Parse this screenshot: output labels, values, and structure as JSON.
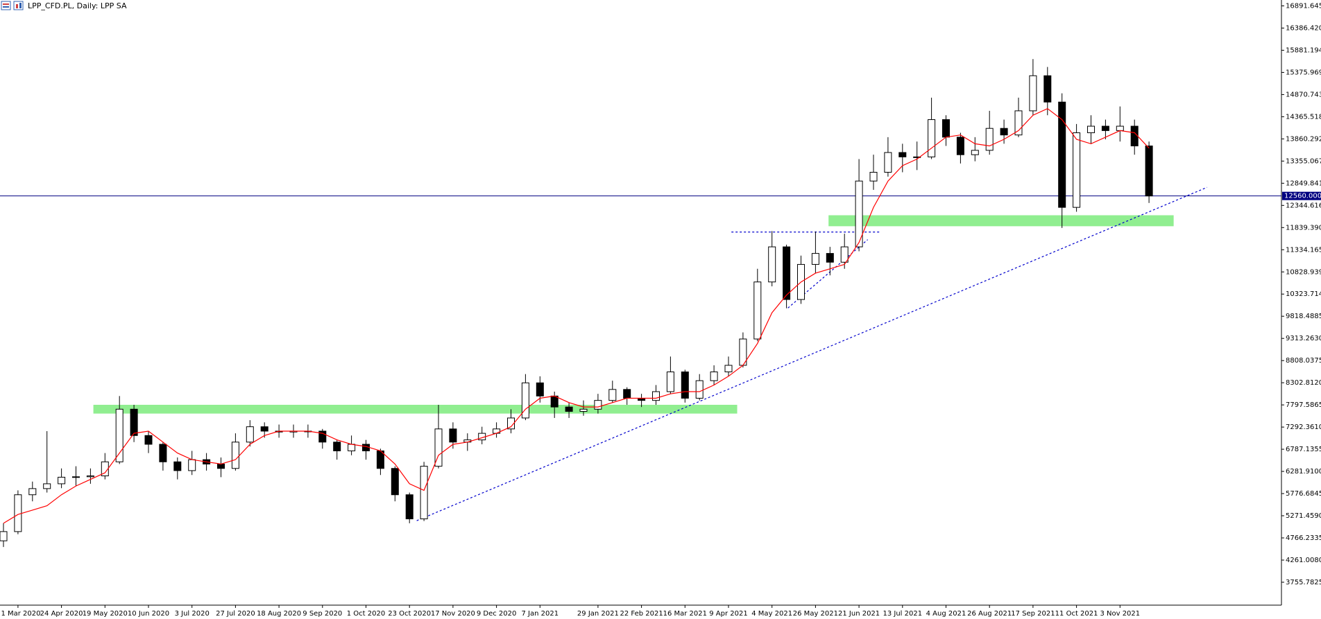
{
  "chart_data": {
    "type": "candlestick",
    "title": "LPP_CFD.PL, Daily: LPP SA",
    "categories": [
      null,
      "1 Mar 2020",
      null,
      null,
      "24 Apr 2020",
      null,
      null,
      "19 May 2020",
      null,
      null,
      "10 Jun 2020",
      null,
      null,
      "3 Jul 2020",
      null,
      null,
      "27 Jul 2020",
      null,
      null,
      "18 Aug 2020",
      null,
      null,
      "9 Sep 2020",
      null,
      null,
      "1 Oct 2020",
      null,
      null,
      "23 Oct 2020",
      null,
      null,
      "17 Nov 2020",
      null,
      null,
      "9 Dec 2020",
      null,
      null,
      "7 Jan 2021",
      null,
      null,
      null,
      "29 Jan 2021",
      null,
      null,
      "22 Feb 2021",
      null,
      null,
      "16 Mar 2021",
      null,
      null,
      "9 Apr 2021",
      null,
      null,
      "4 May 2021",
      null,
      null,
      "26 May 2021",
      null,
      null,
      "21 Jun 2021",
      null,
      null,
      "13 Jul 2021",
      null,
      null,
      "4 Aug 2021",
      null,
      null,
      "26 Aug 2021",
      null,
      null,
      "17 Sep 2021",
      null,
      null,
      "11 Oct 2021",
      null,
      null,
      "3 Nov 2021",
      null,
      null
    ],
    "ohlc": {
      "up_color": "#ffffff",
      "down_color": "#000000",
      "wick_color": "#000000",
      "open": [
        4700,
        4910,
        5750,
        5890,
        6000,
        6150,
        6160,
        6180,
        6500,
        7700,
        7100,
        6900,
        6500,
        6300,
        6550,
        6450,
        6350,
        6950,
        7300,
        7200,
        7180,
        7200,
        7200,
        6950,
        6750,
        6900,
        6750,
        6350,
        5750,
        5200,
        6400,
        7250,
        6950,
        7000,
        7150,
        7250,
        7500,
        8300,
        8000,
        7750,
        7650,
        7700,
        7900,
        8150,
        7950,
        7900,
        8100,
        8550,
        7950,
        8350,
        8550,
        8700,
        9300,
        10600,
        11400,
        10200,
        11000,
        11250,
        11050,
        11400,
        12900,
        13100,
        13550,
        13450,
        13450,
        14300,
        13900,
        13500,
        13600,
        14100,
        13950,
        14500,
        15300,
        14700,
        12300,
        14000,
        14150,
        14050,
        14150,
        13700
      ],
      "high": [
        5100,
        5850,
        6050,
        7200,
        6350,
        6400,
        6350,
        6700,
        8000,
        7800,
        7200,
        6950,
        6600,
        6750,
        6700,
        6600,
        7150,
        7450,
        7400,
        7350,
        7350,
        7350,
        7250,
        7000,
        7100,
        7000,
        6800,
        6400,
        5800,
        6500,
        7800,
        7400,
        7150,
        7300,
        7400,
        7700,
        8500,
        8450,
        8100,
        7850,
        7900,
        8050,
        8350,
        8200,
        8050,
        8250,
        8900,
        8600,
        8500,
        8700,
        8900,
        9450,
        10900,
        11760,
        11450,
        11200,
        11750,
        11400,
        11700,
        13400,
        13500,
        13900,
        13750,
        13800,
        14800,
        14400,
        14000,
        13900,
        14500,
        14300,
        14800,
        15680,
        15500,
        14900,
        14200,
        14400,
        14300,
        14600,
        14300,
        13800
      ],
      "low": [
        4560,
        4850,
        5600,
        5800,
        5900,
        5950,
        6000,
        6100,
        6450,
        6950,
        6700,
        6300,
        6100,
        6200,
        6300,
        6150,
        6300,
        6850,
        7050,
        7050,
        7050,
        7050,
        6800,
        6550,
        6650,
        6550,
        6200,
        5600,
        5100,
        5150,
        6350,
        6800,
        6750,
        6900,
        7050,
        7150,
        7450,
        7850,
        7500,
        7500,
        7550,
        7600,
        7850,
        7800,
        7750,
        7800,
        8050,
        7850,
        7900,
        8250,
        8450,
        8650,
        9250,
        10500,
        10000,
        10100,
        10800,
        10750,
        10900,
        11300,
        12700,
        13000,
        13100,
        13150,
        13400,
        13700,
        13300,
        13350,
        13500,
        13750,
        13900,
        14400,
        14400,
        11830,
        12200,
        13750,
        13850,
        13800,
        13500,
        12400
      ],
      "close": [
        4910,
        5750,
        5890,
        6000,
        6150,
        6160,
        6180,
        6500,
        7700,
        7100,
        6900,
        6500,
        6300,
        6550,
        6450,
        6350,
        6950,
        7300,
        7200,
        7180,
        7200,
        7200,
        6950,
        6750,
        6900,
        6750,
        6350,
        5750,
        5200,
        6400,
        7250,
        6950,
        7000,
        7150,
        7250,
        7500,
        8300,
        8000,
        7750,
        7650,
        7700,
        7900,
        8150,
        7950,
        7900,
        8100,
        8550,
        7950,
        8350,
        8550,
        8700,
        9300,
        10600,
        11400,
        10200,
        11000,
        11250,
        11050,
        11400,
        12900,
        13100,
        13550,
        13450,
        13450,
        14300,
        13900,
        13500,
        13600,
        14100,
        13950,
        14500,
        15300,
        14700,
        12300,
        14000,
        14150,
        14050,
        14150,
        13700,
        12560
      ]
    },
    "ma": {
      "color": "#ff0000",
      "values": [
        5100,
        5300,
        5400,
        5500,
        5750,
        5950,
        6100,
        6250,
        6700,
        7150,
        7200,
        6950,
        6700,
        6550,
        6500,
        6450,
        6550,
        6900,
        7100,
        7200,
        7200,
        7200,
        7150,
        7000,
        6900,
        6850,
        6750,
        6450,
        6000,
        5850,
        6650,
        6900,
        6950,
        7050,
        7150,
        7300,
        7700,
        7950,
        8000,
        7850,
        7750,
        7750,
        7850,
        7950,
        7950,
        7950,
        8050,
        8100,
        8100,
        8250,
        8450,
        8700,
        9200,
        9900,
        10300,
        10600,
        10800,
        10900,
        11000,
        11500,
        12300,
        12900,
        13250,
        13400,
        13650,
        13900,
        13950,
        13750,
        13700,
        13850,
        14050,
        14400,
        14550,
        14300,
        13850,
        13750,
        13900,
        14050,
        14000,
        13650
      ]
    },
    "price_line": {
      "value": 12560,
      "label": "12560.0000",
      "color": "#000080"
    },
    "zones": [
      {
        "start": 6.2,
        "end": 50.6,
        "top": 7800,
        "bottom": 7600,
        "color": "#90ee90"
      },
      {
        "start": 56.9,
        "end": 80.7,
        "top": 12120,
        "bottom": 11870,
        "color": "#90ee90"
      }
    ],
    "trendlines": [
      {
        "x1": 28.5,
        "x2": 83,
        "y1": 5159,
        "y2": 12756,
        "color": "#0000cd"
      },
      {
        "x1": 54.1,
        "x2": 59.6,
        "y1": 10006,
        "y2": 11564,
        "color": "#0000cd"
      },
      {
        "x1": 50.2,
        "x2": 60.5,
        "y1": 11737,
        "y2": 11737,
        "color": "#0000cd"
      }
    ],
    "ylim": [
      3234,
      17026
    ],
    "yticks": [
      3755.7825,
      {
        "value": 4261.008,
        "label": "4261.0080"
      },
      4766.2335,
      {
        "value": 5271.459,
        "label": "5271.4590"
      },
      5776.6845,
      {
        "value": 6281.91,
        "label": "6281.9100"
      },
      6787.1355,
      {
        "value": 7292.361,
        "label": "7292.3610"
      },
      7797.5865,
      {
        "value": 8302.812,
        "label": "8302.8120"
      },
      8808.0375,
      {
        "value": 9313.263,
        "label": "9313.2630"
      },
      9818.4885,
      {
        "value": 10323.714,
        "label": "10323.7140"
      },
      10828.9395,
      {
        "value": 11334.165,
        "label": "11334.1650"
      },
      11839.3905,
      {
        "value": 12344.616,
        "label": "12344.6160"
      },
      12849.8415,
      13355.067,
      13860.2925,
      {
        "value": 14365.518,
        "label": "14365.5180"
      },
      14870.7435,
      15375.969,
      15881.1945,
      {
        "value": 16386.42,
        "label": "16386.4200"
      },
      16891.6455
    ]
  }
}
